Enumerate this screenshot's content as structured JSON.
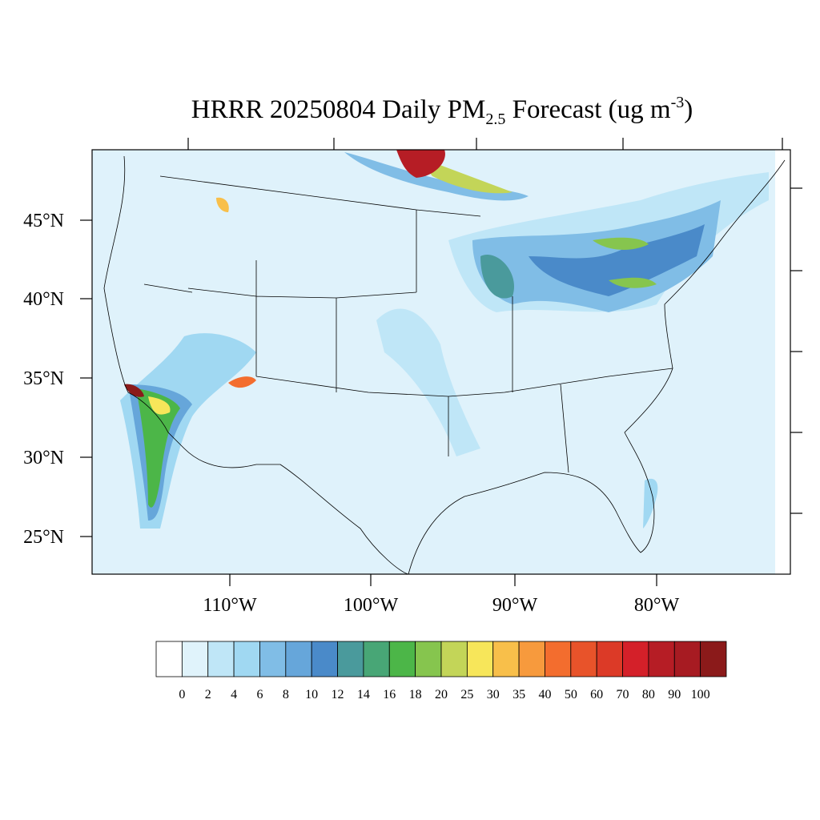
{
  "title_parts": [
    "HRRR 20250804 Daily PM",
    "2.5",
    " Forecast (ug m",
    "-3",
    ")"
  ],
  "lat_labels": [
    "45°N",
    "40°N",
    "35°N",
    "30°N",
    "25°N"
  ],
  "lon_labels": [
    "110°W",
    "100°W",
    "90°W",
    "80°W"
  ],
  "colorbar": {
    "labels": [
      "0",
      "2",
      "4",
      "6",
      "8",
      "10",
      "12",
      "14",
      "16",
      "18",
      "20",
      "25",
      "30",
      "35",
      "40",
      "50",
      "60",
      "70",
      "80",
      "90",
      "100"
    ],
    "colors": [
      "#ffffff",
      "#e0f3fb",
      "#bfe6f7",
      "#a0d8f2",
      "#80bde6",
      "#66a6da",
      "#4a8ac9",
      "#4a9a9c",
      "#48a676",
      "#4cb648",
      "#86c54e",
      "#c3d558",
      "#f7e65a",
      "#f8bf4a",
      "#f79a3d",
      "#f36d2e",
      "#e8532a",
      "#dc3a27",
      "#d42029",
      "#b61d25",
      "#a71b22",
      "#8b1a1a"
    ]
  }
}
